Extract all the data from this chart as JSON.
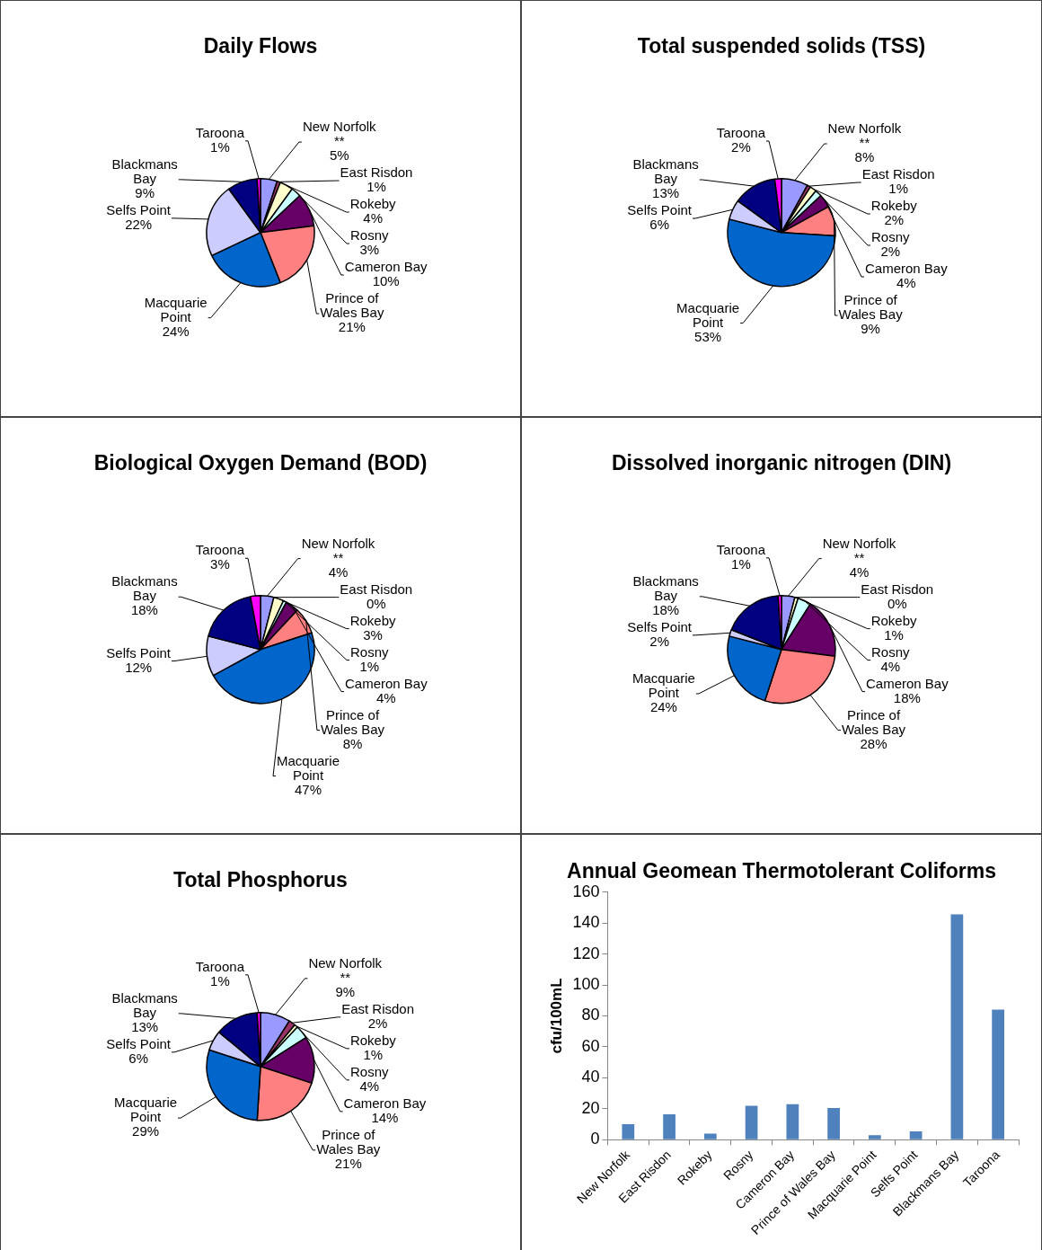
{
  "chart_data": [
    {
      "type": "pie",
      "title": "Daily Flows",
      "categories": [
        "New Norfolk **",
        "East Risdon",
        "Rokeby",
        "Rosny",
        "Cameron Bay",
        "Prince of Wales Bay",
        "Macquarie Point",
        "Selfs Point",
        "Blackmans Bay",
        "Taroona"
      ],
      "values": [
        5,
        1,
        4,
        3,
        10,
        21,
        24,
        22,
        9,
        1
      ],
      "value_labels": [
        "5%",
        "1%",
        "4%",
        "3%",
        "10%",
        "21%",
        "24%",
        "22%",
        "9%",
        "1%"
      ],
      "colors": [
        "#9999ff",
        "#993366",
        "#ffffcc",
        "#ccffff",
        "#660066",
        "#ff8080",
        "#0066cc",
        "#ccccff",
        "#000080",
        "#ff00ff"
      ]
    },
    {
      "type": "pie",
      "title": "Total suspended solids (TSS)",
      "categories": [
        "New Norfolk **",
        "East Risdon",
        "Rokeby",
        "Rosny",
        "Cameron Bay",
        "Prince of Wales Bay",
        "Macquarie Point",
        "Selfs Point",
        "Blackmans Bay",
        "Taroona"
      ],
      "values": [
        8,
        1,
        2,
        2,
        4,
        9,
        53,
        6,
        13,
        2
      ],
      "value_labels": [
        "8%",
        "1%",
        "2%",
        "2%",
        "4%",
        "9%",
        "53%",
        "6%",
        "13%",
        "2%"
      ],
      "colors": [
        "#9999ff",
        "#993366",
        "#ffffcc",
        "#ccffff",
        "#660066",
        "#ff8080",
        "#0066cc",
        "#ccccff",
        "#000080",
        "#ff00ff"
      ]
    },
    {
      "type": "pie",
      "title": "Biological Oxygen Demand (BOD)",
      "categories": [
        "New Norfolk **",
        "East Risdon",
        "Rokeby",
        "Rosny",
        "Cameron Bay",
        "Prince of Wales Bay",
        "Macquarie Point",
        "Selfs Point",
        "Blackmans Bay",
        "Taroona"
      ],
      "values": [
        4,
        0,
        3,
        1,
        4,
        8,
        47,
        12,
        18,
        3
      ],
      "value_labels": [
        "4%",
        "0%",
        "3%",
        "1%",
        "4%",
        "8%",
        "47%",
        "12%",
        "18%",
        "3%"
      ],
      "colors": [
        "#9999ff",
        "#993366",
        "#ffffcc",
        "#ccffff",
        "#660066",
        "#ff8080",
        "#0066cc",
        "#ccccff",
        "#000080",
        "#ff00ff"
      ]
    },
    {
      "type": "pie",
      "title": "Dissolved inorganic nitrogen (DIN)",
      "categories": [
        "New Norfolk **",
        "East Risdon",
        "Rokeby",
        "Rosny",
        "Cameron Bay",
        "Prince of Wales Bay",
        "Macquarie Point",
        "Selfs Point",
        "Blackmans Bay",
        "Taroona"
      ],
      "values": [
        4,
        0,
        1,
        4,
        18,
        28,
        24,
        2,
        18,
        1
      ],
      "value_labels": [
        "4%",
        "0%",
        "1%",
        "4%",
        "18%",
        "28%",
        "24%",
        "2%",
        "18%",
        "1%"
      ],
      "colors": [
        "#9999ff",
        "#993366",
        "#ffffcc",
        "#ccffff",
        "#660066",
        "#ff8080",
        "#0066cc",
        "#ccccff",
        "#000080",
        "#ff00ff"
      ]
    },
    {
      "type": "pie",
      "title": "Total Phosphorus",
      "categories": [
        "New Norfolk **",
        "East Risdon",
        "Rokeby",
        "Rosny",
        "Cameron Bay",
        "Prince of Wales Bay",
        "Macquarie Point",
        "Selfs Point",
        "Blackmans Bay",
        "Taroona"
      ],
      "values": [
        9,
        2,
        1,
        4,
        14,
        21,
        29,
        6,
        13,
        1
      ],
      "value_labels": [
        "9%",
        "2%",
        "1%",
        "4%",
        "14%",
        "21%",
        "29%",
        "6%",
        "13%",
        "1%"
      ],
      "colors": [
        "#9999ff",
        "#993366",
        "#ffffcc",
        "#ccffff",
        "#660066",
        "#ff8080",
        "#0066cc",
        "#ccccff",
        "#000080",
        "#ff00ff"
      ]
    },
    {
      "type": "bar",
      "title": "Annual Geomean Thermotolerant Coliforms",
      "ylabel": "cfu/100mL",
      "categories": [
        "New Norfolk",
        "East Risdon",
        "Rokeby",
        "Rosny",
        "Cameron Bay",
        "Prince of Wales Bay",
        "Macquarie Point",
        "Selfs Point",
        "Blackmans Bay",
        "Taroona"
      ],
      "values": [
        10,
        16.5,
        4,
        22,
        23,
        20.5,
        3,
        5.5,
        145.5,
        84
      ],
      "color": "#4f81bd",
      "ylim": [
        0,
        160
      ],
      "yticks": [
        0,
        20,
        40,
        60,
        80,
        100,
        120,
        140,
        160
      ]
    }
  ]
}
